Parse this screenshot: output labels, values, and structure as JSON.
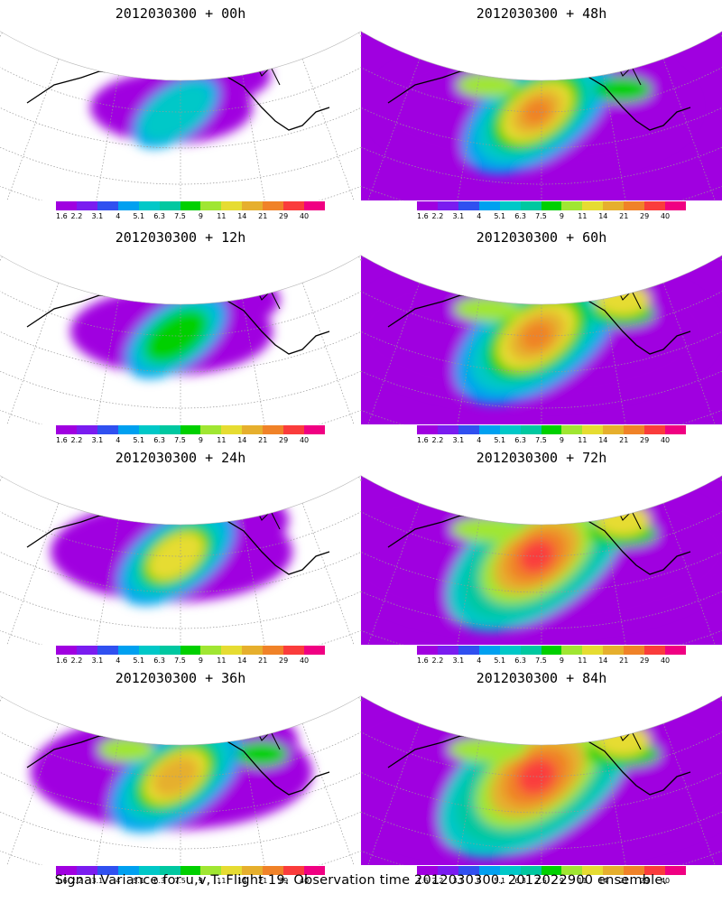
{
  "panels": [
    {
      "title": "2012030300 + 00h",
      "level": 0
    },
    {
      "title": "2012030300 + 48h",
      "level": 4
    },
    {
      "title": "2012030300 + 12h",
      "level": 1
    },
    {
      "title": "2012030300 + 60h",
      "level": 5
    },
    {
      "title": "2012030300 + 24h",
      "level": 2
    },
    {
      "title": "2012030300 + 72h",
      "level": 6
    },
    {
      "title": "2012030300 + 36h",
      "level": 3
    },
    {
      "title": "2012030300 + 84h",
      "level": 7
    }
  ],
  "colorbar": {
    "colors": [
      "#a000e0",
      "#7a1cf0",
      "#3050f0",
      "#00a0f0",
      "#00c8c8",
      "#00c8a0",
      "#00d000",
      "#a0e632",
      "#e6dc32",
      "#e6af2d",
      "#f08228",
      "#fa3c3c",
      "#f00082"
    ],
    "labels": [
      "1.6",
      "2.2",
      "3.1",
      "4",
      "5.1",
      "6.3",
      "7.5",
      "9",
      "11",
      "14",
      "21",
      "29",
      "40"
    ]
  },
  "caption": "Signal Variance for u,v,T. Flight 19. Observation time 2012030300. 2012022900 ensemble."
}
